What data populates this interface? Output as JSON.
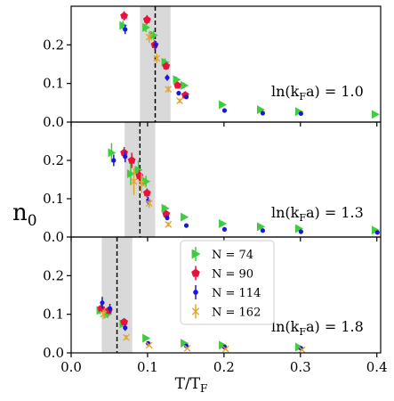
{
  "chart_data": {
    "type": "scatter",
    "xlabel": "T/T",
    "xlabel_sub": "F",
    "ylabel": "n",
    "ylabel_sub": "0",
    "xlim": [
      0.0,
      0.405
    ],
    "x_ticks": [
      "0.0",
      "0.1",
      "0.2",
      "0.3",
      "0.4"
    ],
    "x_tick_values": [
      0.0,
      0.1,
      0.2,
      0.3,
      0.4
    ],
    "legend_position": "bottom panel, center",
    "colors": {
      "N=74": "#3fcc3f",
      "N=90": "#e8123c",
      "N=114": "#1a1ad6",
      "N=162": "#e3a530",
      "band": "#d9d9d9"
    },
    "series_names": [
      "N = 74",
      "N = 90",
      "N = 114",
      "N = 162"
    ],
    "panels": [
      {
        "label_prefix": "ln(k",
        "label_sub": "F",
        "label_suffix": "a) = 1.0",
        "ylim": [
          0.0,
          0.3
        ],
        "y_ticks": [
          "0.0",
          "0.1",
          "0.2"
        ],
        "y_tick_values": [
          0.0,
          0.1,
          0.2
        ],
        "band": [
          0.09,
          0.13
        ],
        "dashed_line": 0.11,
        "series": [
          {
            "name": "N = 74",
            "x": [
              0.07,
              0.1,
              0.11,
              0.125,
              0.14,
              0.15,
              0.2,
              0.25,
              0.3,
              0.4
            ],
            "y": [
              0.25,
              0.245,
              0.225,
              0.155,
              0.11,
              0.095,
              0.045,
              0.032,
              0.027,
              0.02
            ],
            "err": [
              0.012,
              0.012,
              0.012,
              0.01,
              0.008,
              0.007,
              0.004,
              0.003,
              0.003,
              0.002
            ]
          },
          {
            "name": "N = 90",
            "x": [
              0.07,
              0.1,
              0.11,
              0.125,
              0.14,
              0.15
            ],
            "y": [
              0.275,
              0.265,
              0.2,
              0.145,
              0.095,
              0.07
            ],
            "err": [
              0.012,
              0.012,
              0.012,
              0.01,
              0.008,
              0.007
            ]
          },
          {
            "name": "N = 114",
            "x": [
              0.07,
              0.11,
              0.125,
              0.14,
              0.15,
              0.2,
              0.25,
              0.3
            ],
            "y": [
              0.24,
              0.2,
              0.115,
              0.075,
              0.065,
              0.03,
              0.023,
              0.022
            ],
            "err": [
              0.012,
              0.01,
              0.008,
              0.006,
              0.005,
              0.003,
              0.002,
              0.002
            ]
          },
          {
            "name": "N = 162",
            "x": [
              0.1,
              0.11,
              0.125,
              0.14
            ],
            "y": [
              0.22,
              0.165,
              0.085,
              0.055
            ],
            "err": [
              0.015,
              0.012,
              0.008,
              0.006
            ]
          }
        ]
      },
      {
        "label_prefix": "ln(k",
        "label_sub": "F",
        "label_suffix": "a) = 1.3",
        "ylim": [
          0.0,
          0.3
        ],
        "y_ticks": [
          "0.0",
          "0.1",
          "0.2"
        ],
        "y_tick_values": [
          0.0,
          0.1,
          0.2
        ],
        "band": [
          0.07,
          0.11
        ],
        "dashed_line": 0.09,
        "series": [
          {
            "name": "N = 74",
            "x": [
              0.055,
              0.08,
              0.09,
              0.1,
              0.125,
              0.15,
              0.2,
              0.25,
              0.3,
              0.4
            ],
            "y": [
              0.22,
              0.165,
              0.175,
              0.145,
              0.075,
              0.052,
              0.035,
              0.027,
              0.022,
              0.018
            ],
            "err": [
              0.025,
              0.03,
              0.025,
              0.015,
              0.008,
              0.006,
              0.004,
              0.003,
              0.003,
              0.002
            ]
          },
          {
            "name": "N = 90",
            "x": [
              0.07,
              0.08,
              0.09,
              0.1,
              0.125
            ],
            "y": [
              0.22,
              0.2,
              0.16,
              0.115,
              0.06
            ],
            "err": [
              0.015,
              0.02,
              0.015,
              0.012,
              0.007
            ]
          },
          {
            "name": "N = 114",
            "x": [
              0.055,
              0.07,
              0.1,
              0.125,
              0.15,
              0.2,
              0.25,
              0.3,
              0.4
            ],
            "y": [
              0.2,
              0.21,
              0.095,
              0.05,
              0.03,
              0.02,
              0.017,
              0.014,
              0.012
            ],
            "err": [
              0.015,
              0.015,
              0.01,
              0.006,
              0.004,
              0.003,
              0.002,
              0.002,
              0.002
            ]
          },
          {
            "name": "N = 162",
            "x": [
              0.08,
              0.09,
              0.1,
              0.125
            ],
            "y": [
              0.145,
              0.14,
              0.088,
              0.033
            ],
            "err": [
              0.035,
              0.025,
              0.012,
              0.006
            ]
          }
        ]
      },
      {
        "label_prefix": "ln(k",
        "label_sub": "F",
        "label_suffix": "a) = 1.8",
        "ylim": [
          0.0,
          0.3
        ],
        "y_ticks": [
          "0.0",
          "0.1",
          "0.2"
        ],
        "y_tick_values": [
          0.0,
          0.1,
          0.2
        ],
        "band": [
          0.04,
          0.08
        ],
        "dashed_line": 0.06,
        "series": [
          {
            "name": "N = 74",
            "x": [
              0.04,
              0.05,
              0.07,
              0.1,
              0.15,
              0.2,
              0.3
            ],
            "y": [
              0.11,
              0.1,
              0.075,
              0.038,
              0.025,
              0.02,
              0.015
            ],
            "err": [
              0.01,
              0.01,
              0.008,
              0.005,
              0.003,
              0.002,
              0.002
            ]
          },
          {
            "name": "N = 90",
            "x": [
              0.04,
              0.05,
              0.07
            ],
            "y": [
              0.115,
              0.11,
              0.08
            ],
            "err": [
              0.01,
              0.01,
              0.008
            ]
          },
          {
            "name": "N = 114",
            "x": [
              0.04,
              0.05,
              0.07,
              0.1,
              0.15,
              0.2,
              0.3
            ],
            "y": [
              0.13,
              0.115,
              0.065,
              0.025,
              0.018,
              0.015,
              0.012
            ],
            "err": [
              0.015,
              0.012,
              0.008,
              0.004,
              0.003,
              0.002,
              0.002
            ]
          },
          {
            "name": "N = 162",
            "x": [
              0.04,
              0.07,
              0.1,
              0.15,
              0.2,
              0.3
            ],
            "y": [
              0.1,
              0.04,
              0.02,
              0.012,
              0.01,
              0.008
            ],
            "err": [
              0.012,
              0.006,
              0.003,
              0.002,
              0.002,
              0.002
            ]
          }
        ]
      }
    ]
  }
}
